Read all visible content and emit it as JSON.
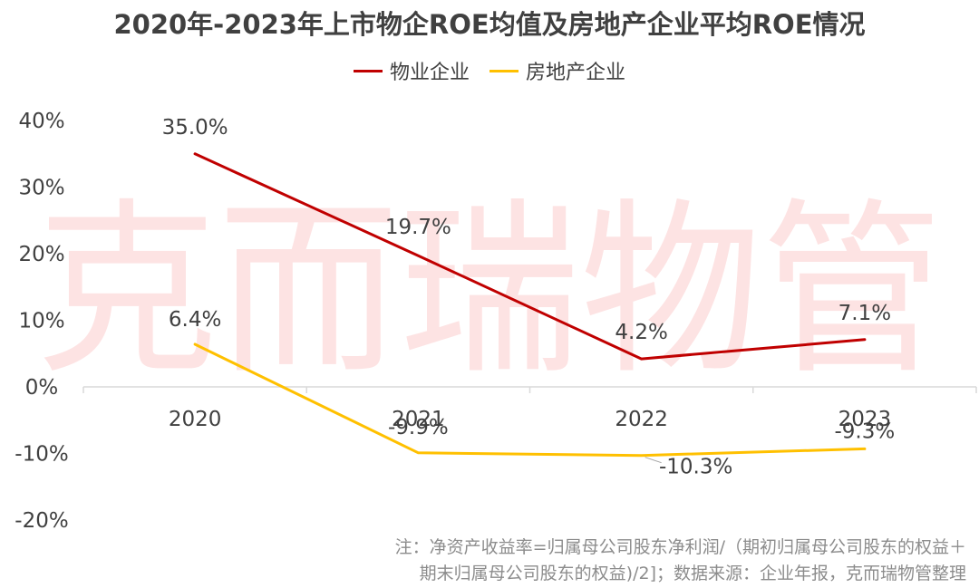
{
  "chart_data": {
    "type": "line",
    "title": "2020年-2023年上市物企ROE均值及房地产企业平均ROE情况",
    "categories": [
      "2020",
      "2021",
      "2022",
      "2023"
    ],
    "series": [
      {
        "name": "物业企业",
        "color": "#c00000",
        "values": [
          35.0,
          19.7,
          4.2,
          7.1
        ],
        "labels": [
          "35.0%",
          "19.7%",
          "4.2%",
          "7.1%"
        ]
      },
      {
        "name": "房地产企业",
        "color": "#ffc000",
        "values": [
          6.4,
          -9.9,
          -10.3,
          -9.3
        ],
        "labels": [
          "6.4%",
          "-9.9%",
          "-10.3%",
          "-9.3%"
        ]
      }
    ],
    "y_ticks": [
      40,
      30,
      20,
      10,
      0,
      -10,
      -20
    ],
    "y_tick_labels": [
      "40%",
      "30%",
      "20%",
      "10%",
      "0%",
      "-10%",
      "-20%"
    ],
    "ylim": [
      -20,
      40
    ],
    "xlabel": "",
    "ylabel": "",
    "legend_position": "top-center",
    "grid": false
  },
  "watermark": {
    "text": "克而瑞物管",
    "color": "#fde3e3"
  },
  "footnote": {
    "line1": "注：净资产收益率=归属母公司股东净利润/（期初归属母公司股东的权益＋",
    "line2": "期末归属母公司股东的权益)/2]；数据来源：企业年报，克而瑞物管整理"
  }
}
